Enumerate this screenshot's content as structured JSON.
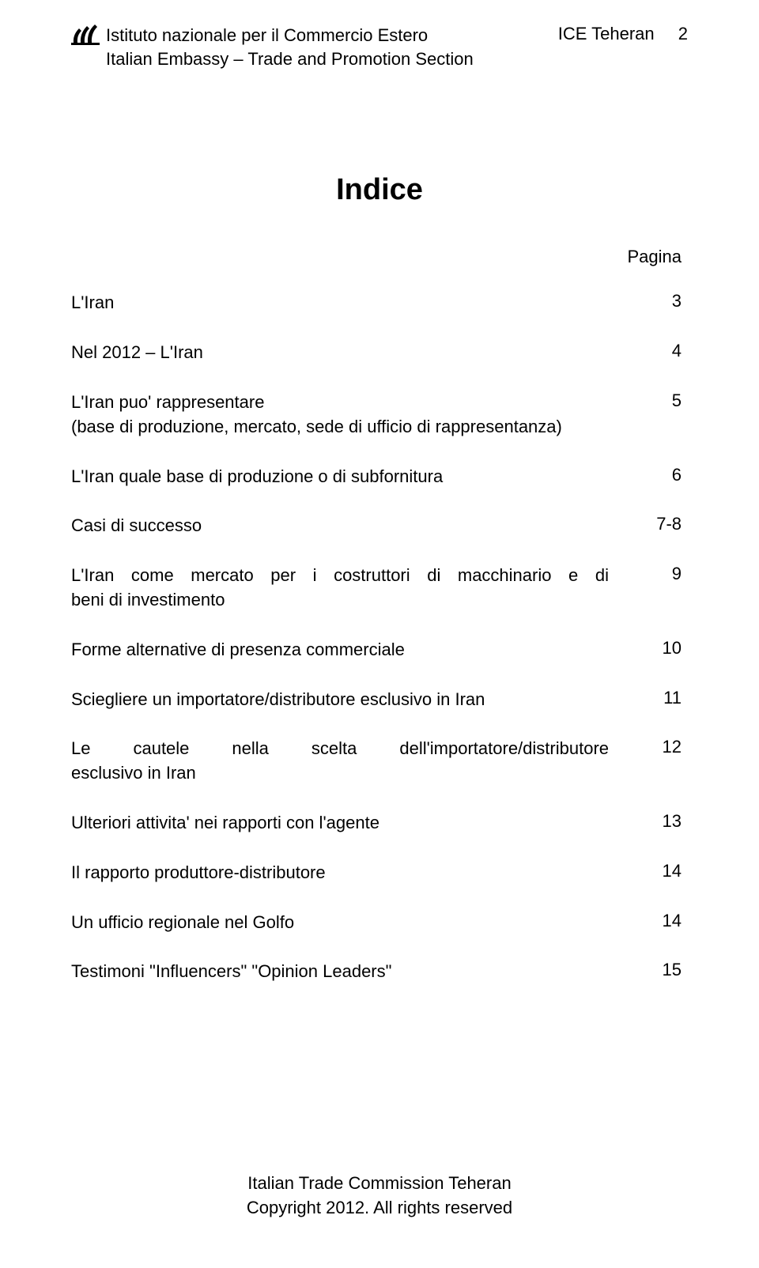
{
  "header": {
    "org_line1": "Istituto nazionale per il Commercio Estero",
    "org_line2": "Italian Embassy – Trade and Promotion Section",
    "right_label": "ICE Teheran",
    "page_number": "2"
  },
  "title": "Indice",
  "pagina_label": "Pagina",
  "toc": [
    {
      "label": "L'Iran",
      "page": "3",
      "multiline": false
    },
    {
      "label": "Nel 2012 – L'Iran",
      "page": "4",
      "multiline": false
    },
    {
      "label_line1": "L'Iran puo' rappresentare",
      "label_line2": "(base di produzione, mercato, sede di ufficio di rappresentanza)",
      "page": "5",
      "multiline": true
    },
    {
      "label": "L'Iran quale base di produzione o di subfornitura",
      "page": "6",
      "multiline": false
    },
    {
      "label": "Casi di successo",
      "page": "7-8",
      "multiline": false
    },
    {
      "label_line1_words": [
        "L'Iran",
        "come",
        "mercato",
        "per",
        "i",
        "costruttori",
        "di",
        "macchinario",
        "e",
        "di"
      ],
      "label_line2": "beni di investimento",
      "page": "9",
      "multiline": true,
      "spread": true
    },
    {
      "label": "Forme alternative di presenza commerciale",
      "page": "10",
      "multiline": false
    },
    {
      "label": "Sciegliere un importatore/distributore esclusivo in Iran",
      "page": "11",
      "multiline": false
    },
    {
      "label_line1_words": [
        "Le",
        "cautele",
        "nella",
        "scelta",
        "dell'importatore/distributore"
      ],
      "label_line2": "esclusivo in Iran",
      "page": "12",
      "multiline": true,
      "spread": true
    },
    {
      "label": "Ulteriori attivita' nei rapporti con l'agente",
      "page": "13",
      "multiline": false
    },
    {
      "label": "Il rapporto produttore-distributore",
      "page": "14",
      "multiline": false
    },
    {
      "label": "Un ufficio regionale nel Golfo",
      "page": "14",
      "multiline": false
    },
    {
      "label": "Testimoni \"Influencers\" \"Opinion Leaders\"",
      "page": "15",
      "multiline": false
    }
  ],
  "footer": {
    "line1": "Italian Trade Commission Teheran",
    "line2": "Copyright 2012. All rights reserved"
  },
  "colors": {
    "text": "#000000",
    "background": "#ffffff"
  },
  "typography": {
    "body_fontsize_pt": 16,
    "title_fontsize_pt": 28,
    "font_family": "Arial"
  }
}
